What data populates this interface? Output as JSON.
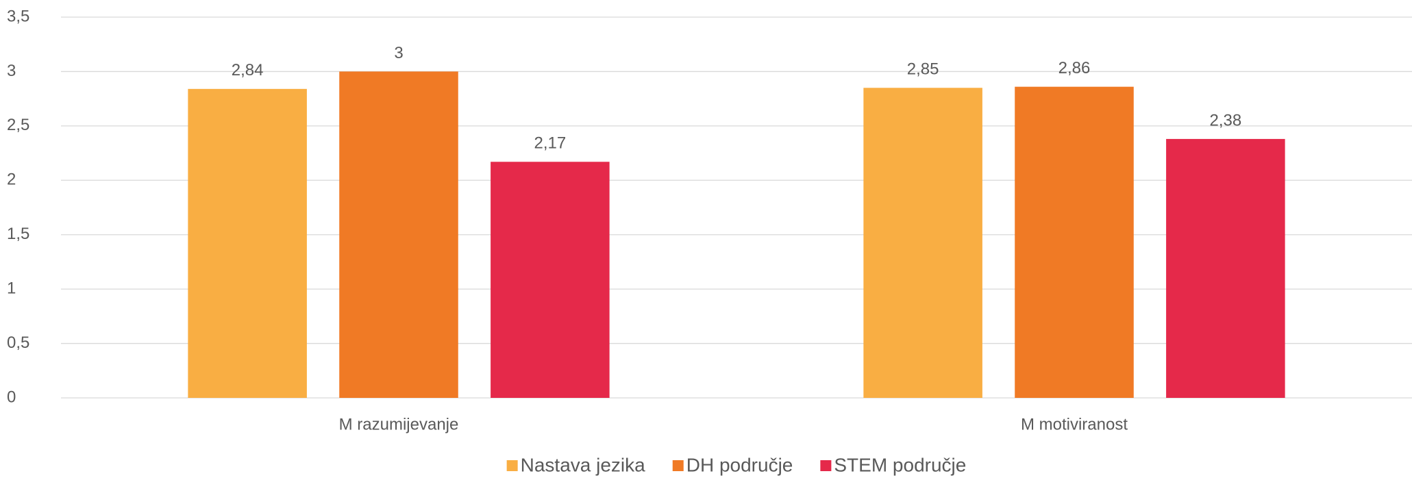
{
  "chart_data": {
    "type": "bar",
    "categories": [
      "M razumijevanje",
      "M motiviranost"
    ],
    "series": [
      {
        "name": "Nastava jezika",
        "color": "#f9ae43",
        "values": [
          2.84,
          2.85
        ],
        "value_labels": [
          "2,84",
          "2,85"
        ]
      },
      {
        "name": "DH područje",
        "color": "#f07a25",
        "values": [
          3,
          2.86
        ],
        "value_labels": [
          "3",
          "2,86"
        ]
      },
      {
        "name": "STEM područje",
        "color": "#e5294a",
        "values": [
          2.17,
          2.38
        ],
        "value_labels": [
          "2,17",
          "2,38"
        ]
      }
    ],
    "ylim": [
      0,
      3.5
    ],
    "yticks": [
      0,
      {
        "value": 0.5,
        "label": "0,5"
      },
      1,
      {
        "value": 1.5,
        "label": "1,5"
      },
      2,
      {
        "value": 2.5,
        "label": "2,5"
      },
      3,
      {
        "value": 3.5,
        "label": "3,5"
      }
    ],
    "grid": true,
    "legend": "bottom"
  }
}
